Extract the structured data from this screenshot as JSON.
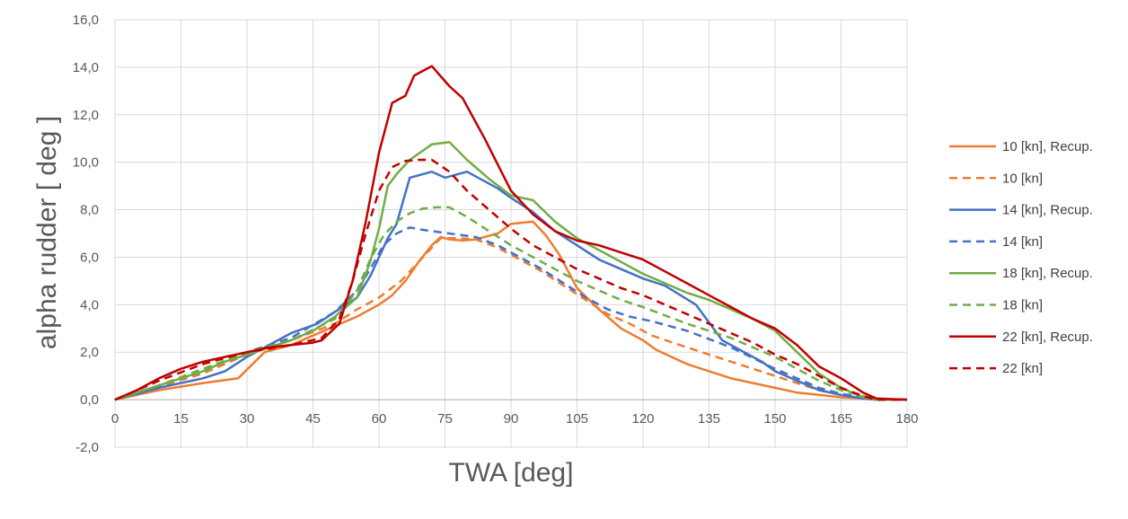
{
  "chart_data": {
    "type": "line",
    "title": "",
    "xlabel": "TWA [deg]",
    "ylabel": "alpha rudder  [ deg ]",
    "xlim": [
      0,
      180
    ],
    "ylim": [
      -2,
      16
    ],
    "xticks": [
      0,
      15,
      30,
      45,
      60,
      75,
      90,
      105,
      120,
      135,
      150,
      165,
      180
    ],
    "yticks": [
      -2,
      0,
      2,
      4,
      6,
      8,
      10,
      12,
      14,
      16
    ],
    "xtick_labels": [
      "0",
      "15",
      "30",
      "45",
      "60",
      "75",
      "90",
      "105",
      "120",
      "135",
      "150",
      "165",
      "180"
    ],
    "ytick_labels": [
      "-2,0",
      "0,0",
      "2,0",
      "4,0",
      "6,0",
      "8,0",
      "10,0",
      "12,0",
      "14,0",
      "16,0"
    ],
    "grid": true,
    "legend_position": "right",
    "series": [
      {
        "name": "10  [kn], Recup.",
        "color": "#ED7D31",
        "dash": false,
        "points": [
          [
            0,
            0
          ],
          [
            5,
            0.2
          ],
          [
            10,
            0.4
          ],
          [
            15,
            0.55
          ],
          [
            20,
            0.7
          ],
          [
            28,
            0.9
          ],
          [
            34,
            2.0
          ],
          [
            40,
            2.3
          ],
          [
            45,
            2.7
          ],
          [
            50,
            3.1
          ],
          [
            55,
            3.5
          ],
          [
            60,
            4.0
          ],
          [
            63,
            4.4
          ],
          [
            66,
            5.0
          ],
          [
            69,
            5.8
          ],
          [
            72,
            6.5
          ],
          [
            74,
            6.85
          ],
          [
            76,
            6.75
          ],
          [
            79,
            6.7
          ],
          [
            82,
            6.75
          ],
          [
            87,
            7.0
          ],
          [
            90,
            7.4
          ],
          [
            95,
            7.5
          ],
          [
            98,
            6.9
          ],
          [
            101,
            6.1
          ],
          [
            105,
            4.7
          ],
          [
            110,
            3.8
          ],
          [
            115,
            3.0
          ],
          [
            120,
            2.5
          ],
          [
            123,
            2.1
          ],
          [
            130,
            1.5
          ],
          [
            135,
            1.2
          ],
          [
            140,
            0.9
          ],
          [
            145,
            0.7
          ],
          [
            150,
            0.5
          ],
          [
            155,
            0.3
          ],
          [
            160,
            0.2
          ],
          [
            165,
            0.1
          ],
          [
            170,
            0.05
          ],
          [
            173,
            0
          ],
          [
            180,
            0
          ]
        ]
      },
      {
        "name": "10  [kn]",
        "color": "#ED7D31",
        "dash": true,
        "points": [
          [
            0,
            0
          ],
          [
            10,
            0.55
          ],
          [
            20,
            1.1
          ],
          [
            30,
            1.9
          ],
          [
            40,
            2.5
          ],
          [
            50,
            3.2
          ],
          [
            55,
            3.8
          ],
          [
            60,
            4.3
          ],
          [
            65,
            5.0
          ],
          [
            70,
            6.0
          ],
          [
            74,
            6.8
          ],
          [
            78,
            6.8
          ],
          [
            82,
            6.75
          ],
          [
            87,
            6.4
          ],
          [
            92,
            5.9
          ],
          [
            97,
            5.4
          ],
          [
            102,
            4.8
          ],
          [
            107,
            4.2
          ],
          [
            112,
            3.6
          ],
          [
            117,
            3.2
          ],
          [
            122,
            2.7
          ],
          [
            130,
            2.2
          ],
          [
            140,
            1.6
          ],
          [
            150,
            1.0
          ],
          [
            160,
            0.4
          ],
          [
            165,
            0.2
          ],
          [
            173,
            0
          ],
          [
            180,
            0
          ]
        ]
      },
      {
        "name": "14  [kn], Recup.",
        "color": "#4472C4",
        "dash": false,
        "points": [
          [
            0,
            0
          ],
          [
            5,
            0.25
          ],
          [
            10,
            0.5
          ],
          [
            15,
            0.7
          ],
          [
            20,
            0.9
          ],
          [
            25,
            1.2
          ],
          [
            30,
            1.8
          ],
          [
            35,
            2.3
          ],
          [
            40,
            2.8
          ],
          [
            46,
            3.2
          ],
          [
            50,
            3.7
          ],
          [
            55,
            4.3
          ],
          [
            58,
            5.2
          ],
          [
            62,
            6.8
          ],
          [
            64,
            7.4
          ],
          [
            67,
            9.35
          ],
          [
            70,
            9.5
          ],
          [
            72,
            9.6
          ],
          [
            75,
            9.35
          ],
          [
            77,
            9.45
          ],
          [
            80,
            9.6
          ],
          [
            83,
            9.3
          ],
          [
            87,
            8.9
          ],
          [
            90,
            8.5
          ],
          [
            95,
            7.9
          ],
          [
            100,
            7.1
          ],
          [
            105,
            6.5
          ],
          [
            110,
            5.9
          ],
          [
            115,
            5.5
          ],
          [
            120,
            5.1
          ],
          [
            125,
            4.8
          ],
          [
            132,
            4.0
          ],
          [
            138,
            2.5
          ],
          [
            142,
            2.1
          ],
          [
            147,
            1.6
          ],
          [
            150,
            1.2
          ],
          [
            155,
            0.8
          ],
          [
            160,
            0.4
          ],
          [
            165,
            0.2
          ],
          [
            170,
            0.05
          ],
          [
            173,
            0
          ],
          [
            180,
            0
          ]
        ]
      },
      {
        "name": "14  [kn]",
        "color": "#4472C4",
        "dash": true,
        "points": [
          [
            0,
            0
          ],
          [
            10,
            0.6
          ],
          [
            20,
            1.2
          ],
          [
            30,
            2.0
          ],
          [
            40,
            2.6
          ],
          [
            50,
            3.7
          ],
          [
            55,
            4.6
          ],
          [
            58,
            5.5
          ],
          [
            61,
            6.5
          ],
          [
            64,
            7.0
          ],
          [
            67,
            7.25
          ],
          [
            70,
            7.15
          ],
          [
            74,
            7.05
          ],
          [
            78,
            6.95
          ],
          [
            82,
            6.85
          ],
          [
            87,
            6.5
          ],
          [
            92,
            6.0
          ],
          [
            97,
            5.5
          ],
          [
            102,
            4.9
          ],
          [
            107,
            4.3
          ],
          [
            112,
            3.8
          ],
          [
            117,
            3.5
          ],
          [
            122,
            3.3
          ],
          [
            130,
            2.9
          ],
          [
            140,
            2.2
          ],
          [
            150,
            1.3
          ],
          [
            160,
            0.5
          ],
          [
            165,
            0.25
          ],
          [
            173,
            0
          ],
          [
            180,
            0
          ]
        ]
      },
      {
        "name": "18  [kn], Recup.",
        "color": "#70AD47",
        "dash": false,
        "points": [
          [
            0,
            0
          ],
          [
            5,
            0.3
          ],
          [
            10,
            0.6
          ],
          [
            15,
            0.9
          ],
          [
            20,
            1.2
          ],
          [
            25,
            1.6
          ],
          [
            30,
            1.9
          ],
          [
            35,
            2.2
          ],
          [
            40,
            2.5
          ],
          [
            45,
            2.9
          ],
          [
            50,
            3.5
          ],
          [
            55,
            4.3
          ],
          [
            58,
            5.8
          ],
          [
            60,
            7.2
          ],
          [
            62,
            9.0
          ],
          [
            64,
            9.5
          ],
          [
            67,
            10.1
          ],
          [
            72,
            10.75
          ],
          [
            76,
            10.85
          ],
          [
            80,
            10.1
          ],
          [
            85,
            9.3
          ],
          [
            90,
            8.6
          ],
          [
            95,
            8.4
          ],
          [
            100,
            7.5
          ],
          [
            105,
            6.8
          ],
          [
            110,
            6.3
          ],
          [
            115,
            5.8
          ],
          [
            120,
            5.3
          ],
          [
            125,
            4.9
          ],
          [
            130,
            4.5
          ],
          [
            135,
            4.2
          ],
          [
            140,
            3.8
          ],
          [
            145,
            3.4
          ],
          [
            150,
            2.9
          ],
          [
            155,
            2.0
          ],
          [
            160,
            1.1
          ],
          [
            165,
            0.5
          ],
          [
            170,
            0.1
          ],
          [
            173,
            0
          ],
          [
            180,
            0
          ]
        ]
      },
      {
        "name": "18  [kn]",
        "color": "#70AD47",
        "dash": true,
        "points": [
          [
            0,
            0
          ],
          [
            10,
            0.6
          ],
          [
            20,
            1.3
          ],
          [
            30,
            2.0
          ],
          [
            40,
            2.5
          ],
          [
            50,
            3.4
          ],
          [
            55,
            4.6
          ],
          [
            58,
            5.9
          ],
          [
            61,
            6.9
          ],
          [
            64,
            7.5
          ],
          [
            67,
            7.85
          ],
          [
            70,
            8.05
          ],
          [
            73,
            8.1
          ],
          [
            76,
            8.1
          ],
          [
            80,
            7.7
          ],
          [
            85,
            7.1
          ],
          [
            90,
            6.5
          ],
          [
            95,
            6.0
          ],
          [
            100,
            5.5
          ],
          [
            105,
            5.0
          ],
          [
            110,
            4.6
          ],
          [
            115,
            4.2
          ],
          [
            120,
            3.9
          ],
          [
            130,
            3.2
          ],
          [
            140,
            2.6
          ],
          [
            150,
            1.8
          ],
          [
            160,
            0.8
          ],
          [
            165,
            0.4
          ],
          [
            173,
            0
          ],
          [
            180,
            0
          ]
        ]
      },
      {
        "name": "22  [kn], Recup.",
        "color": "#C00000",
        "dash": false,
        "points": [
          [
            0,
            0
          ],
          [
            5,
            0.4
          ],
          [
            10,
            0.9
          ],
          [
            15,
            1.3
          ],
          [
            20,
            1.6
          ],
          [
            25,
            1.8
          ],
          [
            30,
            2.0
          ],
          [
            35,
            2.2
          ],
          [
            40,
            2.3
          ],
          [
            45,
            2.4
          ],
          [
            47,
            2.5
          ],
          [
            51,
            3.2
          ],
          [
            54,
            5.0
          ],
          [
            57,
            7.5
          ],
          [
            60,
            10.4
          ],
          [
            63,
            12.5
          ],
          [
            66,
            12.8
          ],
          [
            68,
            13.65
          ],
          [
            72,
            14.05
          ],
          [
            76,
            13.2
          ],
          [
            79,
            12.7
          ],
          [
            84,
            11.0
          ],
          [
            90,
            8.8
          ],
          [
            95,
            7.8
          ],
          [
            100,
            7.1
          ],
          [
            105,
            6.7
          ],
          [
            110,
            6.5
          ],
          [
            115,
            6.2
          ],
          [
            120,
            5.9
          ],
          [
            125,
            5.4
          ],
          [
            130,
            4.9
          ],
          [
            135,
            4.4
          ],
          [
            140,
            3.9
          ],
          [
            145,
            3.4
          ],
          [
            150,
            3.0
          ],
          [
            155,
            2.3
          ],
          [
            160,
            1.4
          ],
          [
            165,
            0.9
          ],
          [
            170,
            0.3
          ],
          [
            173,
            0.05
          ],
          [
            180,
            0
          ]
        ]
      },
      {
        "name": "22  [kn]",
        "color": "#C00000",
        "dash": true,
        "points": [
          [
            0,
            0
          ],
          [
            10,
            0.8
          ],
          [
            20,
            1.5
          ],
          [
            30,
            2.0
          ],
          [
            40,
            2.3
          ],
          [
            47,
            2.6
          ],
          [
            51,
            3.4
          ],
          [
            54,
            5.0
          ],
          [
            57,
            7.0
          ],
          [
            60,
            8.8
          ],
          [
            63,
            9.8
          ],
          [
            66,
            10.05
          ],
          [
            69,
            10.1
          ],
          [
            72,
            10.1
          ],
          [
            76,
            9.6
          ],
          [
            80,
            8.8
          ],
          [
            85,
            8.0
          ],
          [
            90,
            7.2
          ],
          [
            95,
            6.5
          ],
          [
            100,
            6.0
          ],
          [
            105,
            5.5
          ],
          [
            110,
            5.1
          ],
          [
            115,
            4.7
          ],
          [
            120,
            4.4
          ],
          [
            125,
            4.0
          ],
          [
            130,
            3.6
          ],
          [
            135,
            3.2
          ],
          [
            140,
            2.8
          ],
          [
            145,
            2.4
          ],
          [
            150,
            1.9
          ],
          [
            155,
            1.5
          ],
          [
            160,
            1.0
          ],
          [
            165,
            0.5
          ],
          [
            170,
            0.15
          ],
          [
            173,
            0
          ],
          [
            180,
            0
          ]
        ]
      }
    ]
  }
}
